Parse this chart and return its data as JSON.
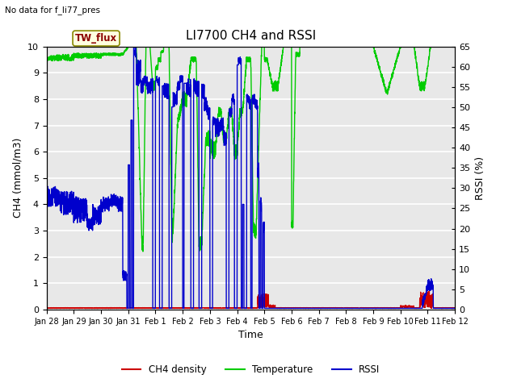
{
  "title": "LI7700 CH4 and RSSI",
  "top_left_text": "No data for f_li77_pres",
  "annotation_text": "TW_flux",
  "xlabel": "Time",
  "ylabel_left": "CH4 (mmol/m3)",
  "ylabel_right": "RSSI (%)",
  "ylim_left": [
    0.0,
    10.0
  ],
  "ylim_right": [
    0,
    65
  ],
  "yticks_left": [
    0.0,
    1.0,
    2.0,
    3.0,
    4.0,
    5.0,
    6.0,
    7.0,
    8.0,
    9.0,
    10.0
  ],
  "yticks_right": [
    0,
    5,
    10,
    15,
    20,
    25,
    30,
    35,
    40,
    45,
    50,
    55,
    60,
    65
  ],
  "tick_labels": [
    "Jan 28",
    "Jan 29",
    "Jan 30",
    "Jan 31",
    "Feb 1",
    "Feb 2",
    "Feb 3",
    "Feb 4",
    "Feb 5",
    "Feb 6",
    "Feb 7",
    "Feb 8",
    "Feb 9",
    "Feb 10",
    "Feb 11",
    "Feb 12"
  ],
  "bg_color": "#e8e8e8",
  "grid_color": "white",
  "ch4_color": "#cc0000",
  "temp_color": "#00cc00",
  "rssi_color": "#0000cc",
  "legend_labels": [
    "CH4 density",
    "Temperature",
    "RSSI"
  ],
  "title_fontsize": 11,
  "axis_fontsize": 9,
  "tick_fontsize": 8,
  "figsize": [
    6.4,
    4.8
  ],
  "dpi": 100
}
